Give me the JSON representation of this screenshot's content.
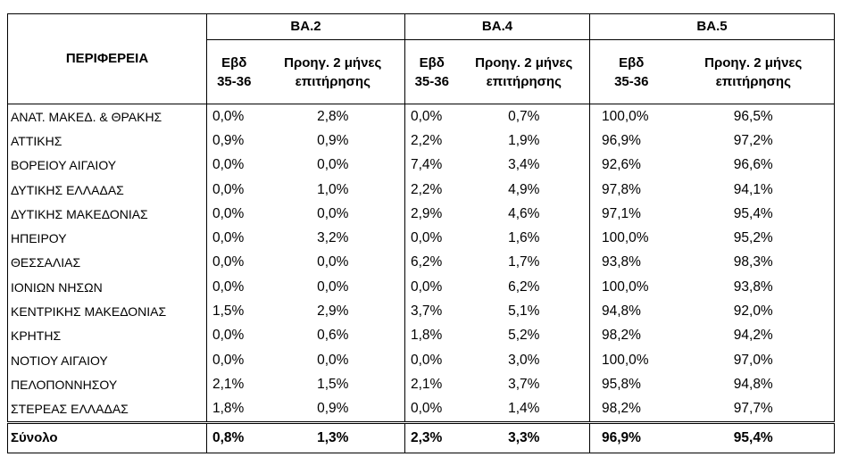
{
  "header": {
    "region_label": "ΠΕΡΙΦΕΡΕΙΑ",
    "groups": [
      "ΒΑ.2",
      "ΒΑ.4",
      "ΒΑ.5"
    ],
    "sub_week_line1": "Εβδ",
    "sub_week_line2": "35-36",
    "sub_prev_line1": "Προηγ. 2 μήνες",
    "sub_prev_line2": "επιτήρησης"
  },
  "rows": [
    {
      "region": "ΑΝΑΤ. ΜΑΚΕΔ. & ΘΡΑΚΗΣ",
      "values": [
        "0,0%",
        "2,8%",
        "0,0%",
        "0,7%",
        "100,0%",
        "96,5%"
      ]
    },
    {
      "region": "ΑΤΤΙΚΗΣ",
      "values": [
        "0,9%",
        "0,9%",
        "2,2%",
        "1,9%",
        "96,9%",
        "97,2%"
      ]
    },
    {
      "region": "ΒΟΡΕΙΟΥ ΑΙΓΑΙΟΥ",
      "values": [
        "0,0%",
        "0,0%",
        "7,4%",
        "3,4%",
        "92,6%",
        "96,6%"
      ]
    },
    {
      "region": "ΔΥΤΙΚΗΣ ΕΛΛΑΔΑΣ",
      "values": [
        "0,0%",
        "1,0%",
        "2,2%",
        "4,9%",
        "97,8%",
        "94,1%"
      ]
    },
    {
      "region": "ΔΥΤΙΚΗΣ ΜΑΚΕΔΟΝΙΑΣ",
      "values": [
        "0,0%",
        "0,0%",
        "2,9%",
        "4,6%",
        "97,1%",
        "95,4%"
      ]
    },
    {
      "region": "ΗΠΕΙΡΟΥ",
      "values": [
        "0,0%",
        "3,2%",
        "0,0%",
        "1,6%",
        "100,0%",
        "95,2%"
      ]
    },
    {
      "region": "ΘΕΣΣΑΛΙΑΣ",
      "values": [
        "0,0%",
        "0,0%",
        "6,2%",
        "1,7%",
        "93,8%",
        "98,3%"
      ]
    },
    {
      "region": "ΙΟΝΙΩΝ ΝΗΣΩΝ",
      "values": [
        "0,0%",
        "0,0%",
        "0,0%",
        "6,2%",
        "100,0%",
        "93,8%"
      ]
    },
    {
      "region": "ΚΕΝΤΡΙΚΗΣ ΜΑΚΕΔΟΝΙΑΣ",
      "values": [
        "1,5%",
        "2,9%",
        "3,7%",
        "5,1%",
        "94,8%",
        "92,0%"
      ]
    },
    {
      "region": "ΚΡΗΤΗΣ",
      "values": [
        "0,0%",
        "0,6%",
        "1,8%",
        "5,2%",
        "98,2%",
        "94,2%"
      ]
    },
    {
      "region": "ΝΟΤΙΟΥ ΑΙΓΑΙΟΥ",
      "values": [
        "0,0%",
        "0,0%",
        "0,0%",
        "3,0%",
        "100,0%",
        "97,0%"
      ]
    },
    {
      "region": "ΠΕΛΟΠΟΝΝΗΣΟΥ",
      "values": [
        "2,1%",
        "1,5%",
        "2,1%",
        "3,7%",
        "95,8%",
        "94,8%"
      ]
    },
    {
      "region": "ΣΤΕΡΕΑΣ ΕΛΛΑΔΑΣ",
      "values": [
        "1,8%",
        "0,9%",
        "0,0%",
        "1,4%",
        "98,2%",
        "97,7%"
      ]
    }
  ],
  "total": {
    "region": "Σύνολο",
    "values": [
      "0,8%",
      "1,3%",
      "2,3%",
      "3,3%",
      "96,9%",
      "95,4%"
    ]
  }
}
